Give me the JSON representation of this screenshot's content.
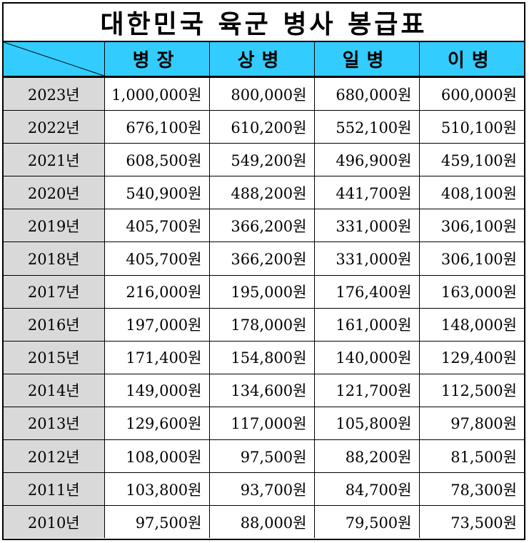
{
  "title": "대한민국 육군 병사 봉급표",
  "columns": [
    "병장",
    "상병",
    "일병",
    "이병"
  ],
  "rows": [
    {
      "year": "2023년",
      "values": [
        "1,000,000원",
        "800,000원",
        "680,000원",
        "600,000원"
      ]
    },
    {
      "year": "2022년",
      "values": [
        "676,100원",
        "610,200원",
        "552,100원",
        "510,100원"
      ]
    },
    {
      "year": "2021년",
      "values": [
        "608,500원",
        "549,200원",
        "496,900원",
        "459,100원"
      ]
    },
    {
      "year": "2020년",
      "values": [
        "540,900원",
        "488,200원",
        "441,700원",
        "408,100원"
      ]
    },
    {
      "year": "2019년",
      "values": [
        "405,700원",
        "366,200원",
        "331,000원",
        "306,100원"
      ]
    },
    {
      "year": "2018년",
      "values": [
        "405,700원",
        "366,200원",
        "331,000원",
        "306,100원"
      ]
    },
    {
      "year": "2017년",
      "values": [
        "216,000원",
        "195,000원",
        "176,400원",
        "163,000원"
      ]
    },
    {
      "year": "2016년",
      "values": [
        "197,000원",
        "178,000원",
        "161,000원",
        "148,000원"
      ]
    },
    {
      "year": "2015년",
      "values": [
        "171,400원",
        "154,800원",
        "140,000원",
        "129,400원"
      ]
    },
    {
      "year": "2014년",
      "values": [
        "149,000원",
        "134,600원",
        "121,700원",
        "112,500원"
      ]
    },
    {
      "year": "2013년",
      "values": [
        "129,600원",
        "117,000원",
        "105,800원",
        "97,800원"
      ]
    },
    {
      "year": "2012년",
      "values": [
        "108,000원",
        "97,500원",
        "88,200원",
        "81,500원"
      ]
    },
    {
      "year": "2011년",
      "values": [
        "103,800원",
        "93,700원",
        "84,700원",
        "78,300원"
      ]
    },
    {
      "year": "2010년",
      "values": [
        "97,500원",
        "88,000원",
        "79,500원",
        "73,500원"
      ]
    }
  ],
  "colors": {
    "header_bg": "#33ccff",
    "year_bg": "#d9d9d9"
  }
}
